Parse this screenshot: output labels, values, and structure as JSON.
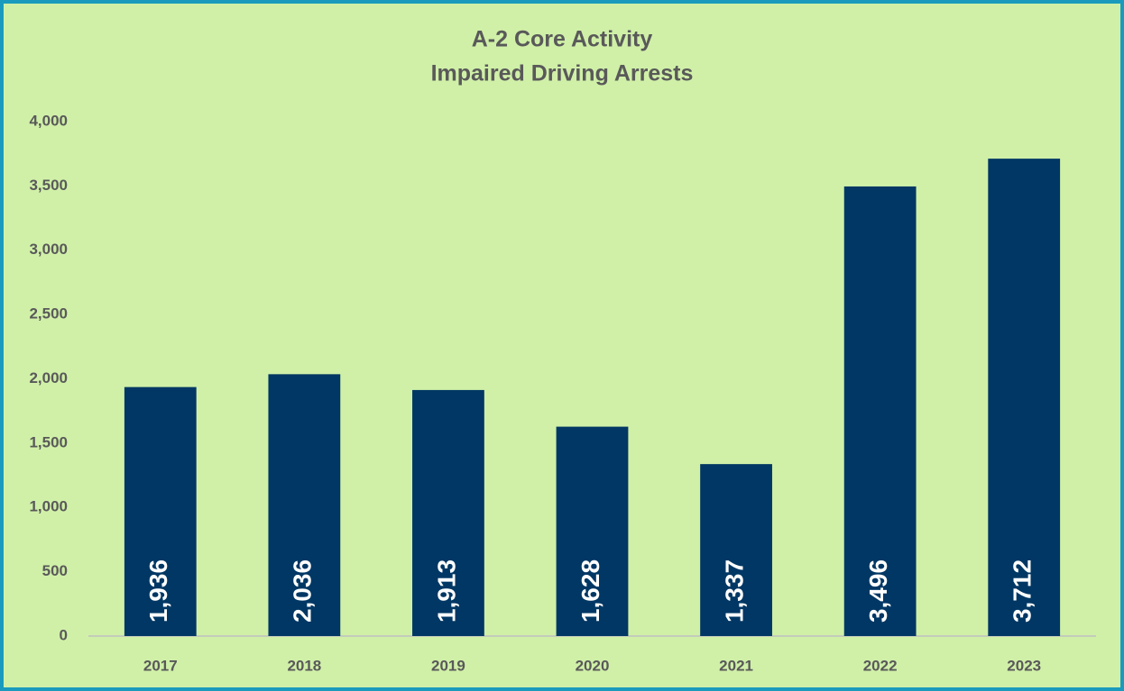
{
  "chart_data": {
    "type": "bar",
    "title": "A-2 Core Activity",
    "subtitle": "Impaired Driving Arrests",
    "categories": [
      "2017",
      "2018",
      "2019",
      "2020",
      "2021",
      "2022",
      "2023"
    ],
    "values": [
      1936,
      2036,
      1913,
      1628,
      1337,
      3496,
      3712
    ],
    "value_labels": [
      "1,936",
      "2,036",
      "1,913",
      "1,628",
      "1,337",
      "3,496",
      "3,712"
    ],
    "color": "#003764",
    "ylim": [
      0,
      4000
    ],
    "yticks": [
      0,
      500,
      {
        "value": 1000,
        "label": "1,000"
      },
      {
        "value": 1500,
        "label": "1,500"
      },
      {
        "value": 2000,
        "label": "2,000"
      },
      {
        "value": 2500,
        "label": "2,500"
      },
      {
        "value": 3000,
        "label": "3,000"
      },
      {
        "value": 3500,
        "label": "3,500"
      },
      {
        "value": 4000,
        "label": "4,000"
      }
    ],
    "grid": false
  }
}
